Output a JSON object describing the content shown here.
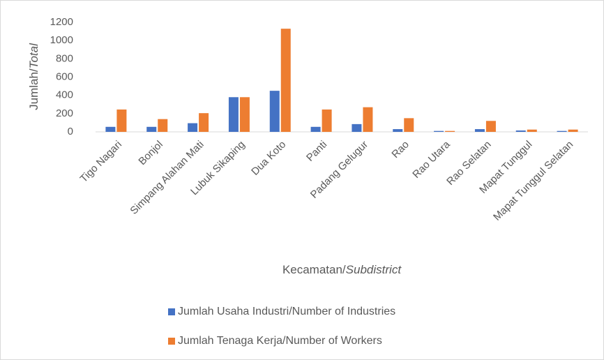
{
  "chart_data": {
    "type": "bar",
    "ylabel": [
      "Jumlah/",
      "Total"
    ],
    "xlabel": [
      "Kecamatan/",
      "Subdistrict"
    ],
    "categories": [
      "Tigo Nagari",
      "Bonjol",
      "Simpang Alahan Mati",
      "Lubuk Sikaping",
      "Dua Koto",
      "Panti",
      "Padang Gelugur",
      "Rao",
      "Rao Utara",
      "Rao Selatan",
      "Mapat Tunggul",
      "Mapat Tunggul Selatan"
    ],
    "series": [
      {
        "name": "Jumlah Usaha Industri/Number of Industries",
        "color": "#4472c4",
        "values": [
          55,
          55,
          95,
          380,
          450,
          55,
          85,
          30,
          10,
          30,
          15,
          10
        ]
      },
      {
        "name": "Jumlah Tenaga Kerja/Number of Workers",
        "color": "#ed7d31",
        "values": [
          245,
          140,
          205,
          380,
          1130,
          245,
          270,
          150,
          10,
          120,
          25,
          25
        ]
      }
    ],
    "ylim": [
      0,
      1200
    ],
    "yticks": [
      0,
      200,
      400,
      600,
      800,
      1000,
      1200
    ],
    "grid": false,
    "legend": "bottom"
  }
}
